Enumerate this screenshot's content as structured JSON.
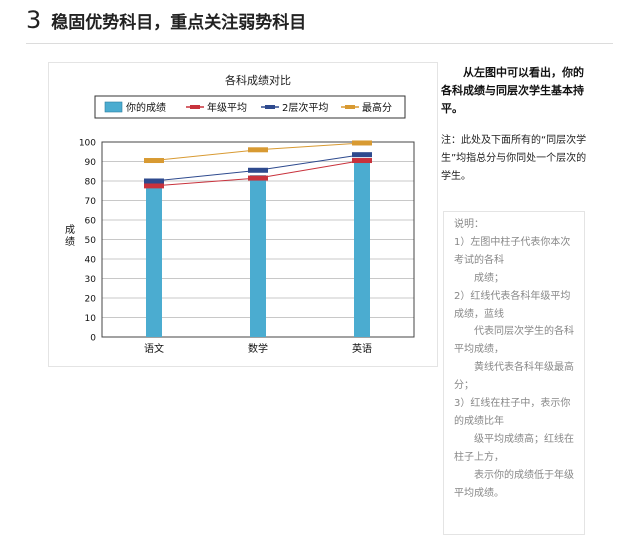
{
  "section": {
    "number": "3",
    "title": "稳固优势科目，重点关注弱势科目"
  },
  "intro": {
    "main": "从左图中可以看出，你的各科成绩与同层次学生基本持平。",
    "note": "注：此处及下面所有的“同层次学生”均指总分与你同处一个层次的学生。"
  },
  "explanation": {
    "lines": [
      {
        "text": "说明：",
        "indent": false
      },
      {
        "text": "1）左图中柱子代表你本次",
        "indent": false
      },
      {
        "text": "考试的各科",
        "indent": false
      },
      {
        "text": "成绩；",
        "indent": true
      },
      {
        "text": "2）红线代表各科年级平均",
        "indent": false
      },
      {
        "text": "成绩，蓝线",
        "indent": false
      },
      {
        "text": "代表同层次学生的各科",
        "indent": true
      },
      {
        "text": "平均成绩，",
        "indent": false
      },
      {
        "text": "黄线代表各科年级最高",
        "indent": true
      },
      {
        "text": "分；",
        "indent": false
      },
      {
        "text": "3）红线在柱子中，表示你",
        "indent": false
      },
      {
        "text": "的成绩比年",
        "indent": false
      },
      {
        "text": "级平均成绩高；红线在",
        "indent": true
      },
      {
        "text": "柱子上方，",
        "indent": false
      },
      {
        "text": "表示你的成绩低于年级",
        "indent": true
      },
      {
        "text": "平均成绩。",
        "indent": false
      }
    ]
  },
  "chart_data": {
    "type": "bar",
    "title": "各科成绩对比",
    "ylabel": "成绩",
    "xlabel": "",
    "ylim": [
      0,
      100
    ],
    "yticks": [
      0,
      10,
      20,
      30,
      40,
      50,
      60,
      70,
      80,
      90,
      100
    ],
    "grid": true,
    "legend": "top",
    "categories": [
      "语文",
      "数学",
      "英语"
    ],
    "bar_series": {
      "name": "你的成绩",
      "values": [
        78,
        83,
        91
      ],
      "color": "#4bacd0"
    },
    "line_series": [
      {
        "name": "年级平均",
        "values": [
          77.5,
          81.5,
          90.5
        ],
        "color": "#c8323c"
      },
      {
        "name": "2层次平均",
        "values": [
          80,
          85.5,
          93.5
        ],
        "color": "#2e4a8e"
      },
      {
        "name": "最高分",
        "values": [
          90.5,
          96,
          99.5
        ],
        "color": "#d89a32"
      }
    ]
  }
}
